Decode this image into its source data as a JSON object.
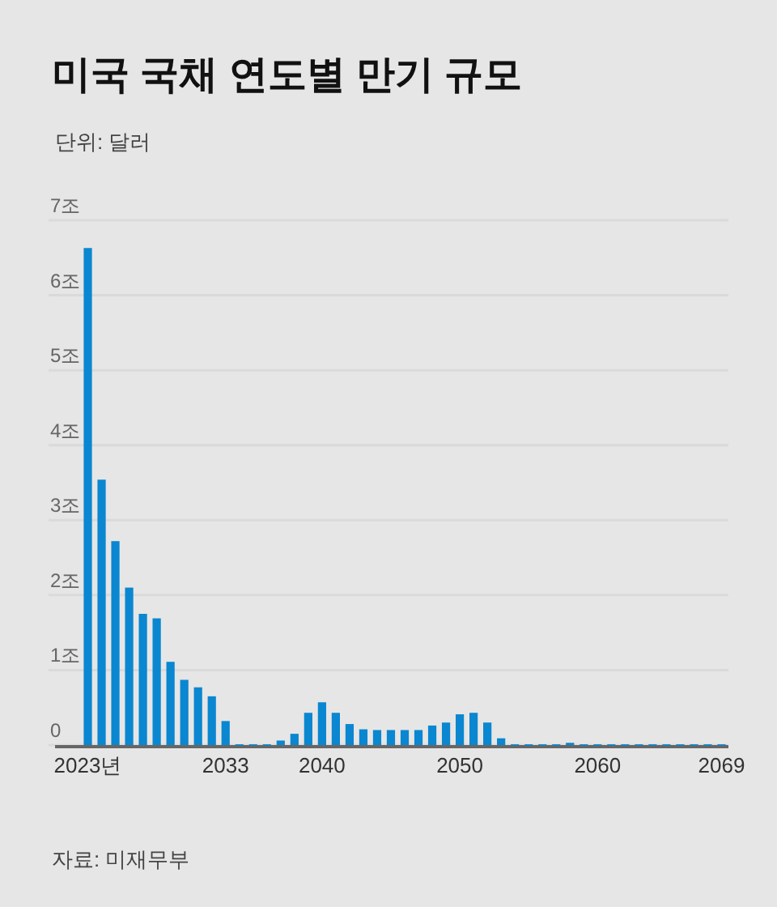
{
  "chart_data": {
    "type": "bar",
    "title": "미국 국채 연도별 만기 규모",
    "subtitle": "단위: 달러",
    "categories": [
      "2023년",
      null,
      null,
      null,
      null,
      null,
      null,
      null,
      null,
      null,
      "2033",
      null,
      null,
      null,
      null,
      null,
      null,
      "2040",
      null,
      null,
      null,
      null,
      null,
      null,
      null,
      null,
      null,
      "2050",
      null,
      null,
      null,
      null,
      null,
      null,
      null,
      null,
      null,
      "2060",
      null,
      null,
      null,
      null,
      null,
      null,
      null,
      null,
      "2069"
    ],
    "values": [
      6.63,
      3.54,
      2.72,
      2.1,
      1.75,
      1.69,
      1.11,
      0.87,
      0.77,
      0.65,
      0.32,
      0.01,
      0.01,
      0.01,
      0.06,
      0.15,
      0.43,
      0.57,
      0.43,
      0.28,
      0.21,
      0.2,
      0.2,
      0.2,
      0.2,
      0.26,
      0.3,
      0.41,
      0.43,
      0.3,
      0.09,
      0.01,
      0.01,
      0.01,
      0.01,
      0.03,
      0.01,
      0.01,
      0.01,
      0.01,
      0.01,
      0.01,
      0.01,
      0.01,
      0.01,
      0.01,
      0.01
    ],
    "color": "#0a87d0",
    "ylim": [
      0,
      7
    ],
    "yticks": [
      {
        "value": 0,
        "label": "0"
      },
      {
        "value": 1,
        "label": "1조"
      },
      {
        "value": 2,
        "label": "2조"
      },
      {
        "value": 3,
        "label": "3조"
      },
      {
        "value": 4,
        "label": "4조"
      },
      {
        "value": 5,
        "label": "5조"
      },
      {
        "value": 6,
        "label": "6조"
      },
      {
        "value": 7,
        "label": "7조"
      }
    ],
    "grid": "y",
    "annotations": [
      "자료: 미재무부"
    ]
  }
}
